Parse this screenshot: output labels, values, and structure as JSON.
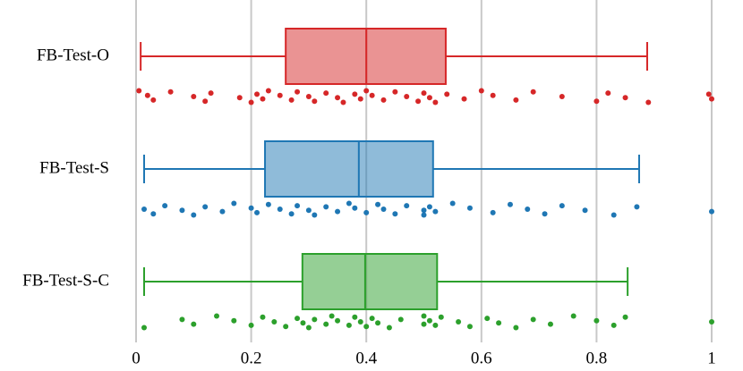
{
  "chart_data": {
    "type": "box",
    "xlim": [
      0,
      1
    ],
    "xticks": [
      0,
      0.2,
      0.4,
      0.6,
      0.8,
      1
    ],
    "grid": true,
    "series": [
      {
        "name": "FB-Test-O",
        "color": "#d62728",
        "whisker_low": 0.008,
        "q1": 0.26,
        "median": 0.4,
        "q3": 0.538,
        "whisker_high": 0.888,
        "points": [
          0.005,
          0.02,
          0.03,
          0.06,
          0.1,
          0.12,
          0.13,
          0.18,
          0.2,
          0.21,
          0.22,
          0.23,
          0.25,
          0.27,
          0.28,
          0.3,
          0.31,
          0.33,
          0.35,
          0.36,
          0.38,
          0.39,
          0.4,
          0.41,
          0.43,
          0.45,
          0.47,
          0.49,
          0.5,
          0.51,
          0.52,
          0.54,
          0.57,
          0.6,
          0.62,
          0.66,
          0.69,
          0.74,
          0.8,
          0.82,
          0.85,
          0.89,
          0.995,
          1
        ]
      },
      {
        "name": "FB-Test-S",
        "color": "#1f77b4",
        "whisker_low": 0.014,
        "q1": 0.224,
        "median": 0.387,
        "q3": 0.516,
        "whisker_high": 0.874,
        "points": [
          0.014,
          0.03,
          0.05,
          0.08,
          0.1,
          0.12,
          0.15,
          0.17,
          0.2,
          0.21,
          0.23,
          0.25,
          0.27,
          0.28,
          0.3,
          0.31,
          0.33,
          0.35,
          0.37,
          0.38,
          0.4,
          0.42,
          0.43,
          0.45,
          0.47,
          0.5,
          0.5,
          0.51,
          0.52,
          0.55,
          0.58,
          0.62,
          0.65,
          0.68,
          0.71,
          0.74,
          0.78,
          0.83,
          0.87,
          1
        ]
      },
      {
        "name": "FB-Test-S-C",
        "color": "#2ca02c",
        "whisker_low": 0.014,
        "q1": 0.289,
        "median": 0.398,
        "q3": 0.523,
        "whisker_high": 0.854,
        "points": [
          0.014,
          0.08,
          0.1,
          0.14,
          0.17,
          0.2,
          0.22,
          0.24,
          0.26,
          0.28,
          0.29,
          0.3,
          0.31,
          0.33,
          0.34,
          0.35,
          0.37,
          0.38,
          0.39,
          0.4,
          0.41,
          0.42,
          0.44,
          0.46,
          0.5,
          0.5,
          0.51,
          0.52,
          0.53,
          0.56,
          0.58,
          0.61,
          0.63,
          0.66,
          0.69,
          0.72,
          0.76,
          0.8,
          0.83,
          0.85,
          1
        ]
      }
    ]
  }
}
